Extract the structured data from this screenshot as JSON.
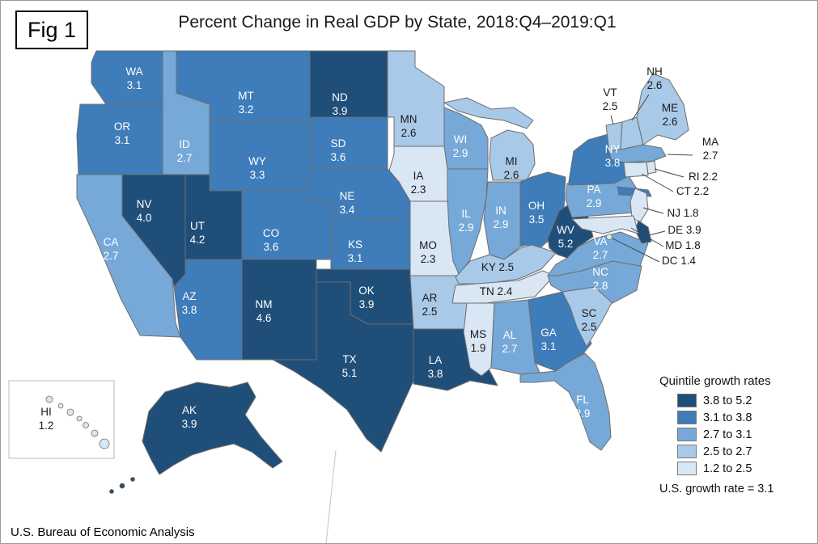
{
  "figure": {
    "tag": "Fig 1"
  },
  "title": "Percent Change in Real GDP by State, 2018:Q4–2019:Q1",
  "source": "U.S. Bureau of Economic Analysis",
  "legend": {
    "title": "Quintile growth rates",
    "note": "U.S. growth rate = 3.1",
    "items": [
      {
        "range": "3.8 to 5.2",
        "color": "#1f4e79"
      },
      {
        "range": "3.1 to 3.8",
        "color": "#3e7cba"
      },
      {
        "range": "2.7 to 3.1",
        "color": "#76a9d8"
      },
      {
        "range": "2.5 to 2.7",
        "color": "#a9c9e8"
      },
      {
        "range": "1.2 to 2.5",
        "color": "#d9e6f4"
      }
    ]
  },
  "map": {
    "border_color": "#6e6e6e",
    "label_colors": {
      "light": "#ffffff",
      "dark": "#1a1a1a"
    },
    "states": [
      {
        "abbr": "WA",
        "value": "3.1",
        "quintile": 2
      },
      {
        "abbr": "OR",
        "value": "3.1",
        "quintile": 2
      },
      {
        "abbr": "CA",
        "value": "2.7",
        "quintile": 3
      },
      {
        "abbr": "NV",
        "value": "4.0",
        "quintile": 1
      },
      {
        "abbr": "ID",
        "value": "2.7",
        "quintile": 3
      },
      {
        "abbr": "MT",
        "value": "3.2",
        "quintile": 2
      },
      {
        "abbr": "WY",
        "value": "3.3",
        "quintile": 2
      },
      {
        "abbr": "UT",
        "value": "4.2",
        "quintile": 1
      },
      {
        "abbr": "CO",
        "value": "3.6",
        "quintile": 2
      },
      {
        "abbr": "AZ",
        "value": "3.8",
        "quintile": 2
      },
      {
        "abbr": "NM",
        "value": "4.6",
        "quintile": 1
      },
      {
        "abbr": "ND",
        "value": "3.9",
        "quintile": 1
      },
      {
        "abbr": "SD",
        "value": "3.6",
        "quintile": 2
      },
      {
        "abbr": "NE",
        "value": "3.4",
        "quintile": 2
      },
      {
        "abbr": "KS",
        "value": "3.1",
        "quintile": 2
      },
      {
        "abbr": "OK",
        "value": "3.9",
        "quintile": 1
      },
      {
        "abbr": "TX",
        "value": "5.1",
        "quintile": 1
      },
      {
        "abbr": "MN",
        "value": "2.6",
        "quintile": 4
      },
      {
        "abbr": "IA",
        "value": "2.3",
        "quintile": 5
      },
      {
        "abbr": "MO",
        "value": "2.3",
        "quintile": 5
      },
      {
        "abbr": "AR",
        "value": "2.5",
        "quintile": 4
      },
      {
        "abbr": "LA",
        "value": "3.8",
        "quintile": 1
      },
      {
        "abbr": "WI",
        "value": "2.9",
        "quintile": 3
      },
      {
        "abbr": "IL",
        "value": "2.9",
        "quintile": 3
      },
      {
        "abbr": "IN",
        "value": "2.9",
        "quintile": 3
      },
      {
        "abbr": "MI",
        "value": "2.6",
        "quintile": 4
      },
      {
        "abbr": "OH",
        "value": "3.5",
        "quintile": 2
      },
      {
        "abbr": "KY",
        "value": "2.5",
        "quintile": 4
      },
      {
        "abbr": "TN",
        "value": "2.4",
        "quintile": 5
      },
      {
        "abbr": "MS",
        "value": "1.9",
        "quintile": 5
      },
      {
        "abbr": "AL",
        "value": "2.7",
        "quintile": 3
      },
      {
        "abbr": "GA",
        "value": "3.1",
        "quintile": 2
      },
      {
        "abbr": "FL",
        "value": "2.9",
        "quintile": 3
      },
      {
        "abbr": "SC",
        "value": "2.5",
        "quintile": 4
      },
      {
        "abbr": "NC",
        "value": "2.8",
        "quintile": 3
      },
      {
        "abbr": "VA",
        "value": "2.7",
        "quintile": 3
      },
      {
        "abbr": "WV",
        "value": "5.2",
        "quintile": 1
      },
      {
        "abbr": "PA",
        "value": "2.9",
        "quintile": 3
      },
      {
        "abbr": "NY",
        "value": "3.8",
        "quintile": 2
      },
      {
        "abbr": "NJ",
        "value": "1.8",
        "quintile": 5
      },
      {
        "abbr": "DE",
        "value": "3.9",
        "quintile": 1
      },
      {
        "abbr": "MD",
        "value": "1.8",
        "quintile": 5
      },
      {
        "abbr": "DC",
        "value": "1.4",
        "quintile": 5
      },
      {
        "abbr": "VT",
        "value": "2.5",
        "quintile": 4
      },
      {
        "abbr": "NH",
        "value": "2.6",
        "quintile": 4
      },
      {
        "abbr": "MA",
        "value": "2.7",
        "quintile": 3
      },
      {
        "abbr": "RI",
        "value": "2.2",
        "quintile": 5
      },
      {
        "abbr": "CT",
        "value": "2.2",
        "quintile": 5
      },
      {
        "abbr": "ME",
        "value": "2.6",
        "quintile": 4
      },
      {
        "abbr": "AK",
        "value": "3.9",
        "quintile": 1
      },
      {
        "abbr": "HI",
        "value": "1.2",
        "quintile": 5
      }
    ]
  }
}
